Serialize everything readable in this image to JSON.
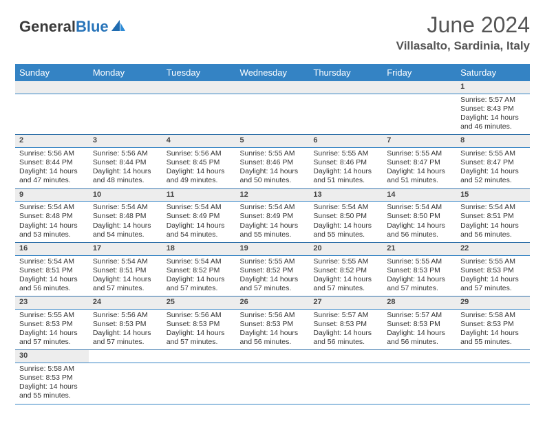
{
  "brand": {
    "part1": "General",
    "part2": "Blue"
  },
  "title": "June 2024",
  "location": "Villasalto, Sardinia, Italy",
  "colors": {
    "header_bg": "#3483c4",
    "header_text": "#ffffff",
    "daynum_bg": "#ededed",
    "border": "#2e6fa8",
    "text": "#333333"
  },
  "weekdays": [
    "Sunday",
    "Monday",
    "Tuesday",
    "Wednesday",
    "Thursday",
    "Friday",
    "Saturday"
  ],
  "weeks": [
    [
      null,
      null,
      null,
      null,
      null,
      null,
      {
        "n": "1",
        "sr": "Sunrise: 5:57 AM",
        "ss": "Sunset: 8:43 PM",
        "d1": "Daylight: 14 hours",
        "d2": "and 46 minutes."
      }
    ],
    [
      {
        "n": "2",
        "sr": "Sunrise: 5:56 AM",
        "ss": "Sunset: 8:44 PM",
        "d1": "Daylight: 14 hours",
        "d2": "and 47 minutes."
      },
      {
        "n": "3",
        "sr": "Sunrise: 5:56 AM",
        "ss": "Sunset: 8:44 PM",
        "d1": "Daylight: 14 hours",
        "d2": "and 48 minutes."
      },
      {
        "n": "4",
        "sr": "Sunrise: 5:56 AM",
        "ss": "Sunset: 8:45 PM",
        "d1": "Daylight: 14 hours",
        "d2": "and 49 minutes."
      },
      {
        "n": "5",
        "sr": "Sunrise: 5:55 AM",
        "ss": "Sunset: 8:46 PM",
        "d1": "Daylight: 14 hours",
        "d2": "and 50 minutes."
      },
      {
        "n": "6",
        "sr": "Sunrise: 5:55 AM",
        "ss": "Sunset: 8:46 PM",
        "d1": "Daylight: 14 hours",
        "d2": "and 51 minutes."
      },
      {
        "n": "7",
        "sr": "Sunrise: 5:55 AM",
        "ss": "Sunset: 8:47 PM",
        "d1": "Daylight: 14 hours",
        "d2": "and 51 minutes."
      },
      {
        "n": "8",
        "sr": "Sunrise: 5:55 AM",
        "ss": "Sunset: 8:47 PM",
        "d1": "Daylight: 14 hours",
        "d2": "and 52 minutes."
      }
    ],
    [
      {
        "n": "9",
        "sr": "Sunrise: 5:54 AM",
        "ss": "Sunset: 8:48 PM",
        "d1": "Daylight: 14 hours",
        "d2": "and 53 minutes."
      },
      {
        "n": "10",
        "sr": "Sunrise: 5:54 AM",
        "ss": "Sunset: 8:48 PM",
        "d1": "Daylight: 14 hours",
        "d2": "and 54 minutes."
      },
      {
        "n": "11",
        "sr": "Sunrise: 5:54 AM",
        "ss": "Sunset: 8:49 PM",
        "d1": "Daylight: 14 hours",
        "d2": "and 54 minutes."
      },
      {
        "n": "12",
        "sr": "Sunrise: 5:54 AM",
        "ss": "Sunset: 8:49 PM",
        "d1": "Daylight: 14 hours",
        "d2": "and 55 minutes."
      },
      {
        "n": "13",
        "sr": "Sunrise: 5:54 AM",
        "ss": "Sunset: 8:50 PM",
        "d1": "Daylight: 14 hours",
        "d2": "and 55 minutes."
      },
      {
        "n": "14",
        "sr": "Sunrise: 5:54 AM",
        "ss": "Sunset: 8:50 PM",
        "d1": "Daylight: 14 hours",
        "d2": "and 56 minutes."
      },
      {
        "n": "15",
        "sr": "Sunrise: 5:54 AM",
        "ss": "Sunset: 8:51 PM",
        "d1": "Daylight: 14 hours",
        "d2": "and 56 minutes."
      }
    ],
    [
      {
        "n": "16",
        "sr": "Sunrise: 5:54 AM",
        "ss": "Sunset: 8:51 PM",
        "d1": "Daylight: 14 hours",
        "d2": "and 56 minutes."
      },
      {
        "n": "17",
        "sr": "Sunrise: 5:54 AM",
        "ss": "Sunset: 8:51 PM",
        "d1": "Daylight: 14 hours",
        "d2": "and 57 minutes."
      },
      {
        "n": "18",
        "sr": "Sunrise: 5:54 AM",
        "ss": "Sunset: 8:52 PM",
        "d1": "Daylight: 14 hours",
        "d2": "and 57 minutes."
      },
      {
        "n": "19",
        "sr": "Sunrise: 5:55 AM",
        "ss": "Sunset: 8:52 PM",
        "d1": "Daylight: 14 hours",
        "d2": "and 57 minutes."
      },
      {
        "n": "20",
        "sr": "Sunrise: 5:55 AM",
        "ss": "Sunset: 8:52 PM",
        "d1": "Daylight: 14 hours",
        "d2": "and 57 minutes."
      },
      {
        "n": "21",
        "sr": "Sunrise: 5:55 AM",
        "ss": "Sunset: 8:53 PM",
        "d1": "Daylight: 14 hours",
        "d2": "and 57 minutes."
      },
      {
        "n": "22",
        "sr": "Sunrise: 5:55 AM",
        "ss": "Sunset: 8:53 PM",
        "d1": "Daylight: 14 hours",
        "d2": "and 57 minutes."
      }
    ],
    [
      {
        "n": "23",
        "sr": "Sunrise: 5:55 AM",
        "ss": "Sunset: 8:53 PM",
        "d1": "Daylight: 14 hours",
        "d2": "and 57 minutes."
      },
      {
        "n": "24",
        "sr": "Sunrise: 5:56 AM",
        "ss": "Sunset: 8:53 PM",
        "d1": "Daylight: 14 hours",
        "d2": "and 57 minutes."
      },
      {
        "n": "25",
        "sr": "Sunrise: 5:56 AM",
        "ss": "Sunset: 8:53 PM",
        "d1": "Daylight: 14 hours",
        "d2": "and 57 minutes."
      },
      {
        "n": "26",
        "sr": "Sunrise: 5:56 AM",
        "ss": "Sunset: 8:53 PM",
        "d1": "Daylight: 14 hours",
        "d2": "and 56 minutes."
      },
      {
        "n": "27",
        "sr": "Sunrise: 5:57 AM",
        "ss": "Sunset: 8:53 PM",
        "d1": "Daylight: 14 hours",
        "d2": "and 56 minutes."
      },
      {
        "n": "28",
        "sr": "Sunrise: 5:57 AM",
        "ss": "Sunset: 8:53 PM",
        "d1": "Daylight: 14 hours",
        "d2": "and 56 minutes."
      },
      {
        "n": "29",
        "sr": "Sunrise: 5:58 AM",
        "ss": "Sunset: 8:53 PM",
        "d1": "Daylight: 14 hours",
        "d2": "and 55 minutes."
      }
    ],
    [
      {
        "n": "30",
        "sr": "Sunrise: 5:58 AM",
        "ss": "Sunset: 8:53 PM",
        "d1": "Daylight: 14 hours",
        "d2": "and 55 minutes."
      },
      null,
      null,
      null,
      null,
      null,
      null
    ]
  ]
}
